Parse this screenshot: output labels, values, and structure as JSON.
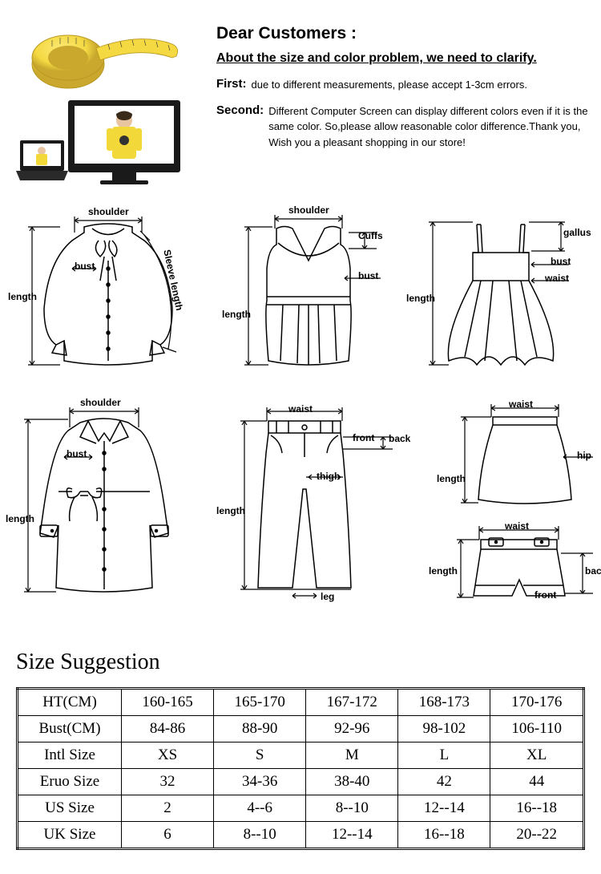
{
  "header": {
    "greeting": "Dear Customers :",
    "clarify_line": "About the size and  color problem, we need to clarify.",
    "first_label": "First:",
    "first_text": "due to different measurements, please accept 1-3cm errors.",
    "second_label": "Second:",
    "second_text": "Different Computer Screen can display different colors even if it is the same color. So,please allow reasonable color difference.Thank you, Wish you a pleasant shopping in our store!"
  },
  "colors": {
    "tape_yellow": "#f4d942",
    "tape_shadow": "#c9a82d",
    "monitor_frame": "#1a1a1a",
    "shirt_yellow": "#f2d838",
    "skin": "#e8c4a0",
    "hair": "#3a2a1a",
    "bg": "#ffffff",
    "ink": "#000000"
  },
  "diagram_labels": {
    "shoulder": "shoulder",
    "bust": "bust",
    "length": "length",
    "sleeve_length": "Sleeve length",
    "cuffs": "Cuffs",
    "waist": "waist",
    "gallus": "gallus",
    "front": "front",
    "back": "back",
    "thigh": "thigh",
    "leg": "leg",
    "hip": "hip"
  },
  "size_suggestion": {
    "heading": "Size Suggestion",
    "rows": [
      {
        "label": "HT(CM)",
        "cells": [
          "160-165",
          "165-170",
          "167-172",
          "168-173",
          "170-176"
        ]
      },
      {
        "label": "Bust(CM)",
        "cells": [
          "84-86",
          "88-90",
          "92-96",
          "98-102",
          "106-110"
        ]
      },
      {
        "label": "Intl Size",
        "cells": [
          "XS",
          "S",
          "M",
          "L",
          "XL"
        ]
      },
      {
        "label": "Eruo Size",
        "cells": [
          "32",
          "34-36",
          "38-40",
          "42",
          "44"
        ]
      },
      {
        "label": "US Size",
        "cells": [
          "2",
          "4--6",
          "8--10",
          "12--14",
          "16--18"
        ]
      },
      {
        "label": "UK Size",
        "cells": [
          "6",
          "8--10",
          "12--14",
          "16--18",
          "20--22"
        ]
      }
    ]
  }
}
